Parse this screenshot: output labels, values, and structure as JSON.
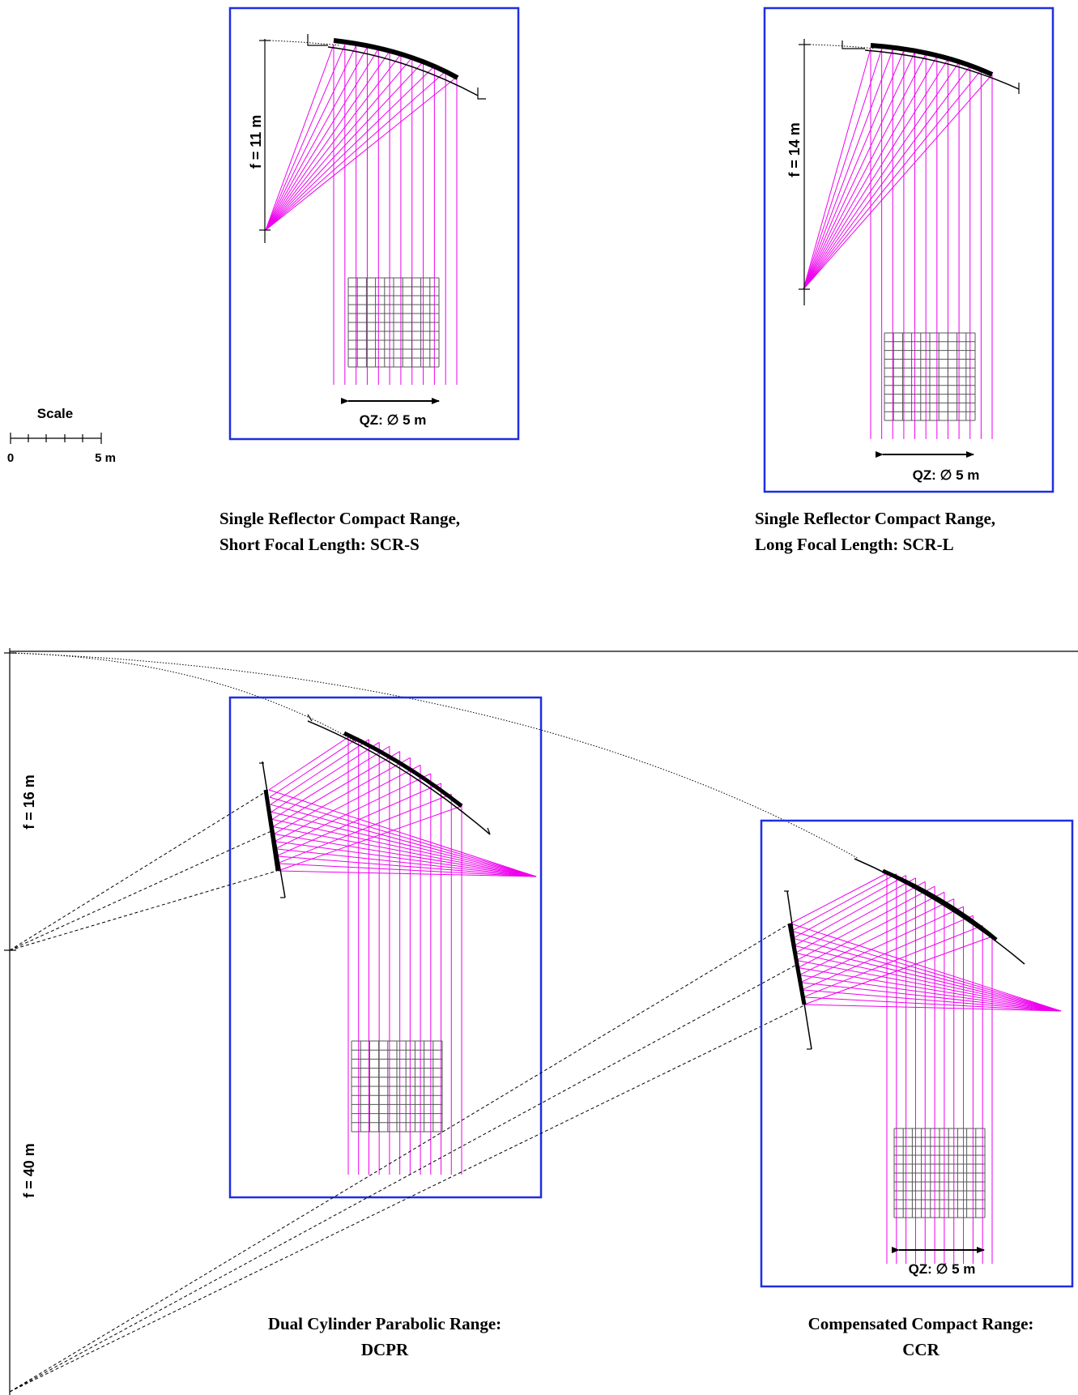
{
  "scale": {
    "label": "Scale",
    "zero": "0",
    "five": "5 m"
  },
  "panels": {
    "scr_s": {
      "focal": "f = 11 m",
      "qz": "QZ: ∅ 5 m",
      "caption_1": "Single Reflector Compact Range,",
      "caption_2": "Short Focal Length: SCR-S"
    },
    "scr_l": {
      "focal": "f = 14 m",
      "qz": "QZ: ∅ 5 m",
      "caption_1": "Single Reflector Compact Range,",
      "caption_2": "Long Focal Length: SCR-L"
    },
    "dcpr": {
      "focal_short": "f = 16 m",
      "focal_long": "f = 40 m",
      "caption_1": "Dual Cylinder Parabolic Range:",
      "caption_2": "DCPR"
    },
    "ccr": {
      "qz": "QZ: ∅ 5 m",
      "caption_1": "Compensated Compact Range:",
      "caption_2": "CCR"
    }
  },
  "colors": {
    "frame": "#1f2ee0",
    "rays": "#ee00ee",
    "lines": "#000000"
  }
}
